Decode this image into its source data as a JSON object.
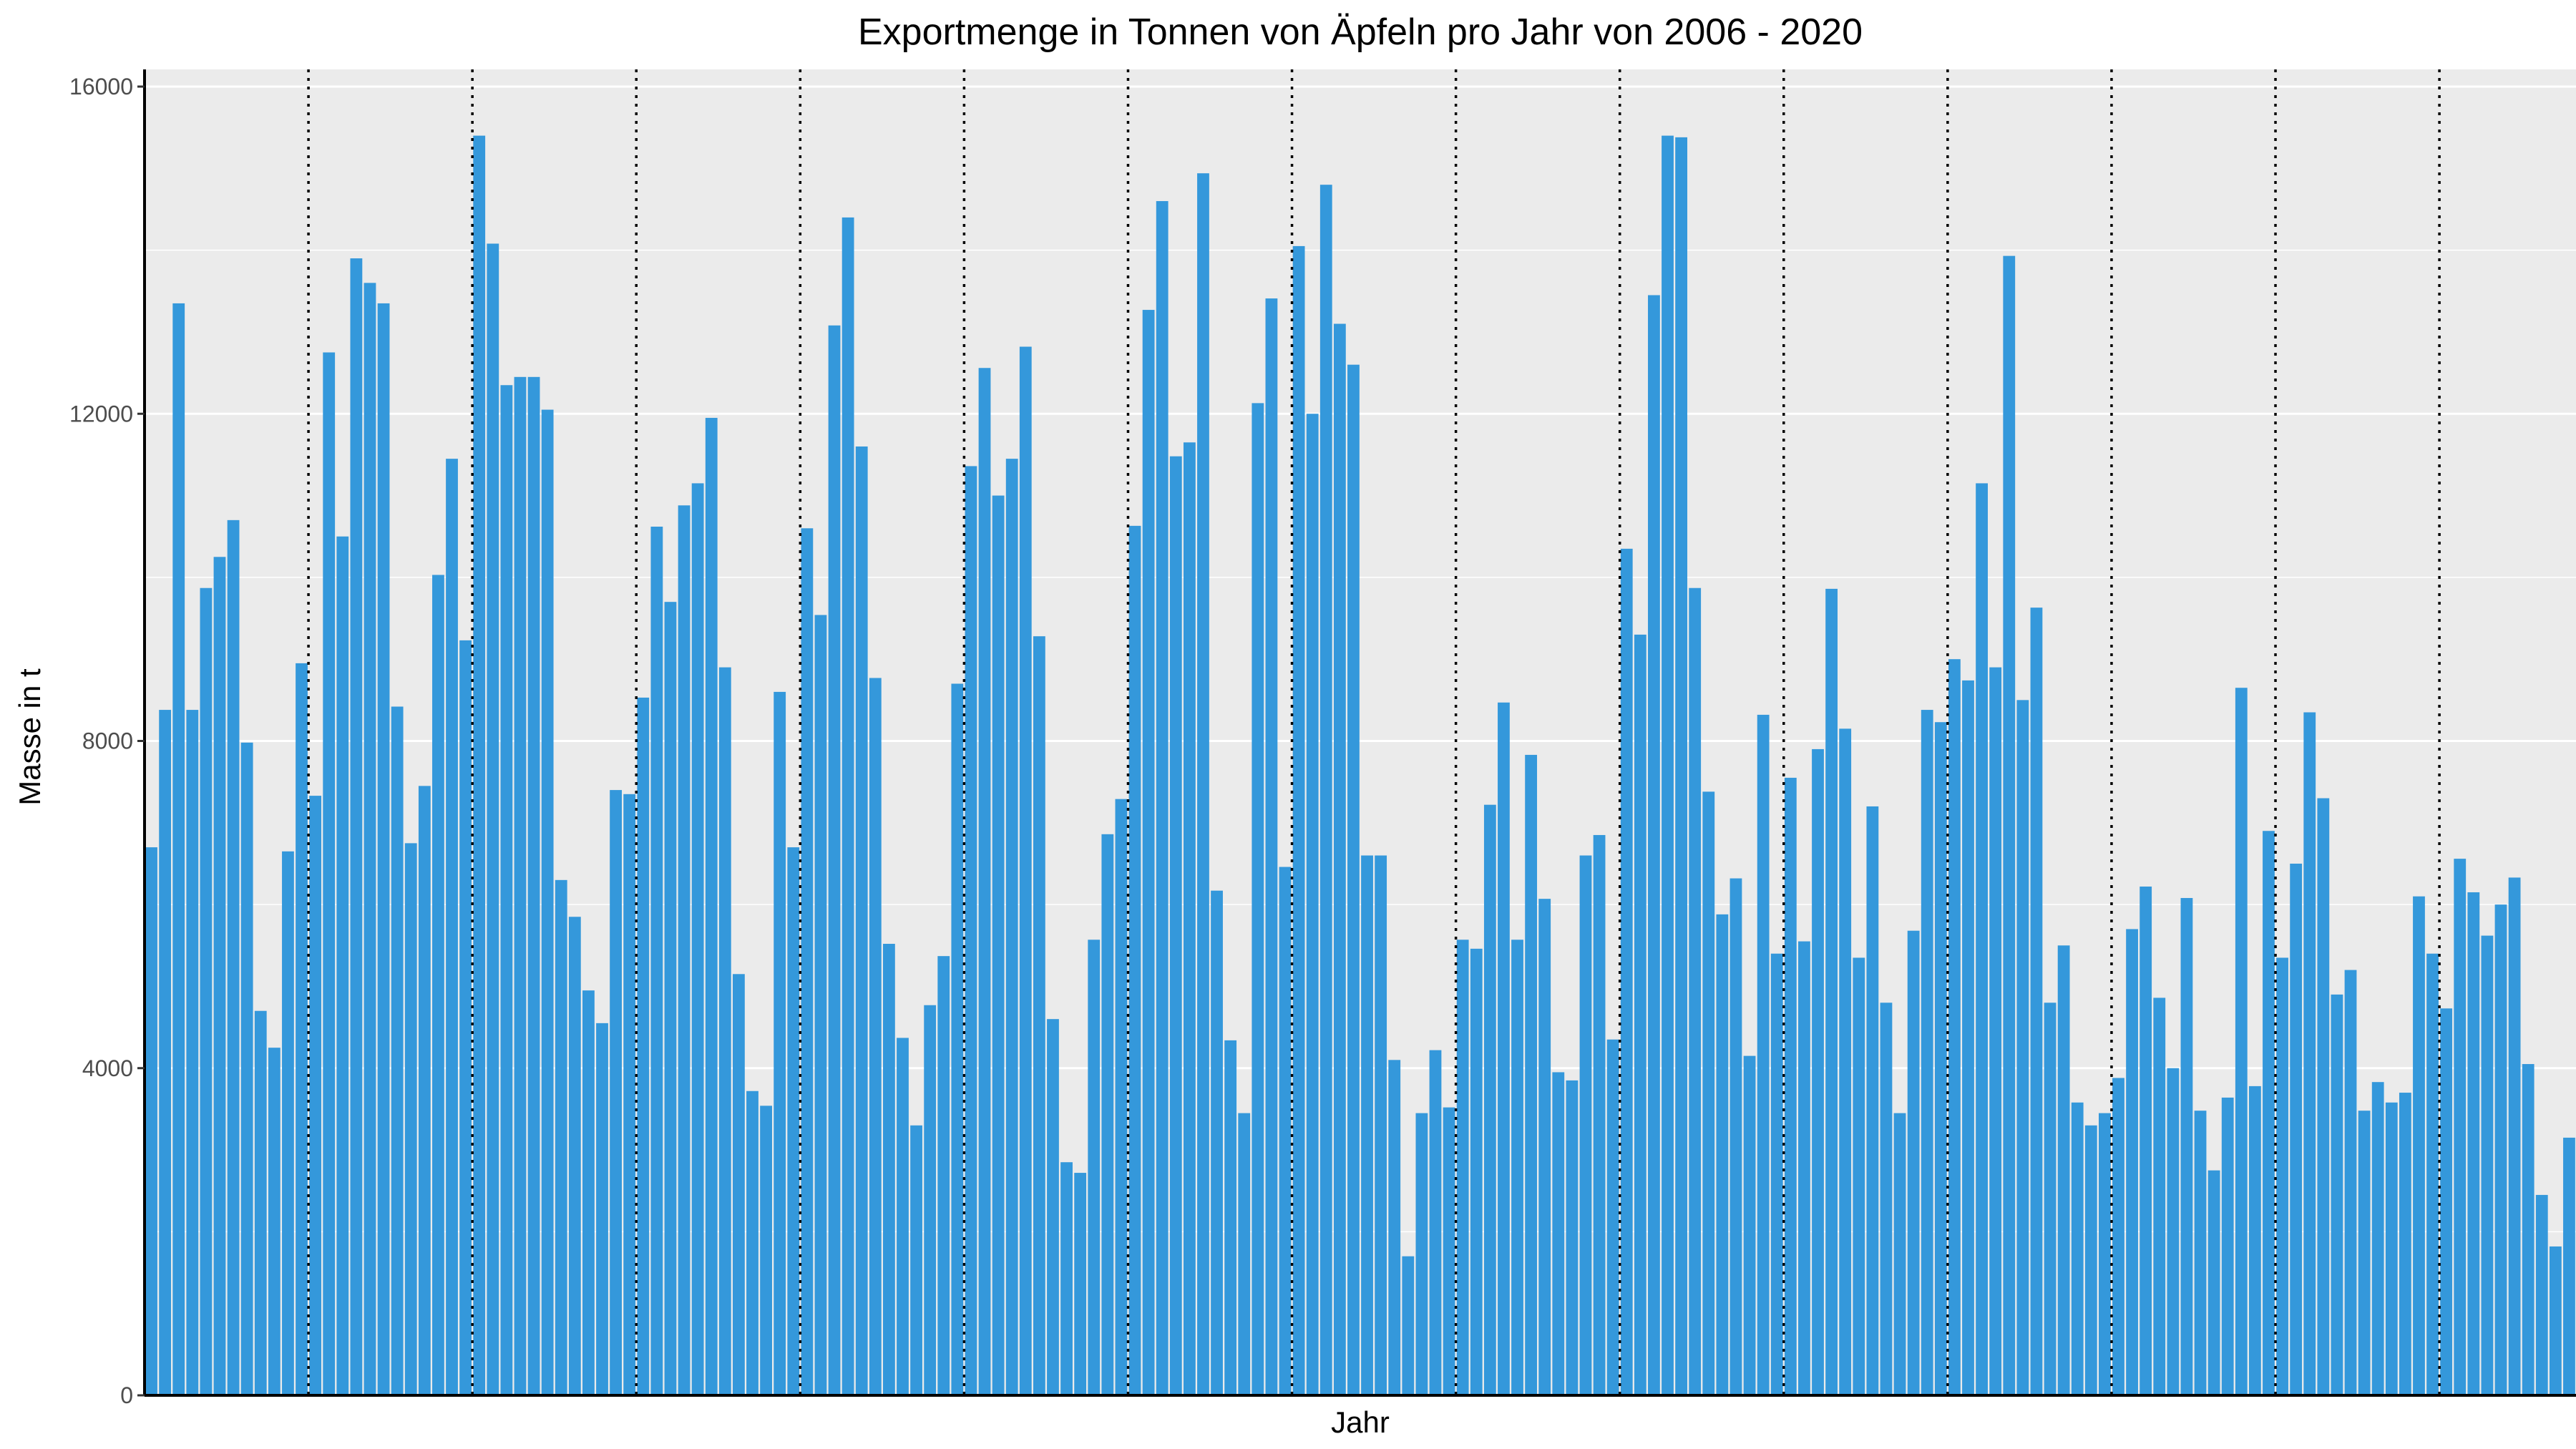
{
  "chart_data": {
    "type": "bar",
    "title": "Exportmenge in Tonnen von Äpfeln pro Jahr von 2006 - 2020",
    "xlabel": "Jahr",
    "ylabel": "Masse in t",
    "ylim": [
      0,
      16000
    ],
    "yticks": [
      "0",
      "4000",
      "8000",
      "12000",
      "16000"
    ],
    "grid": true,
    "legend": "none",
    "bar_color": "#3498db",
    "panel_color": "#ebebeb",
    "year_count": 15,
    "months_per_year": 12,
    "values": [
      6700,
      8380,
      13350,
      8380,
      9870,
      10250,
      10700,
      7980,
      4700,
      4250,
      6650,
      8950,
      7330,
      12750,
      10500,
      13900,
      13600,
      13350,
      8420,
      6750,
      7450,
      10030,
      11450,
      9230,
      15400,
      14080,
      12350,
      12450,
      12450,
      12050,
      6300,
      5850,
      4950,
      4550,
      7400,
      7350,
      8530,
      10620,
      9700,
      10880,
      11150,
      11950,
      8900,
      5150,
      3720,
      3540,
      8600,
      6700,
      10600,
      9540,
      13080,
      14400,
      11600,
      8770,
      5520,
      4370,
      3300,
      4770,
      5370,
      8700,
      11360,
      12560,
      11000,
      11450,
      12820,
      9280,
      4600,
      2850,
      2720,
      5570,
      6860,
      7290,
      10630,
      13270,
      14600,
      11480,
      11650,
      14940,
      6170,
      4340,
      3450,
      12130,
      13410,
      6460,
      14050,
      12000,
      14800,
      13100,
      12600,
      6600,
      6600,
      4100,
      1700,
      3450,
      4220,
      3520,
      5570,
      5460,
      7220,
      8470,
      5570,
      7830,
      6070,
      3950,
      3850,
      6600,
      6850,
      4350,
      10350,
      9300,
      13450,
      15400,
      15380,
      9870,
      7380,
      5880,
      6320,
      4150,
      8320,
      5400,
      7550,
      5550,
      7900,
      9860,
      8150,
      5350,
      7200,
      4800,
      3450,
      5680,
      8380,
      8230,
      9000,
      8740,
      11150,
      8900,
      13930,
      8500,
      9630,
      4800,
      5500,
      3580,
      3300,
      3450,
      3880,
      5700,
      6220,
      4860,
      4000,
      6080,
      3480,
      2750,
      3640,
      8650,
      3780,
      6900,
      5350,
      6500,
      8350,
      7300,
      4900,
      5200,
      3480,
      3830,
      3580,
      3700,
      6100,
      5400,
      4730,
      6560,
      6150,
      5620,
      6000,
      6330,
      4050,
      2450,
      1820,
      3150
    ]
  }
}
